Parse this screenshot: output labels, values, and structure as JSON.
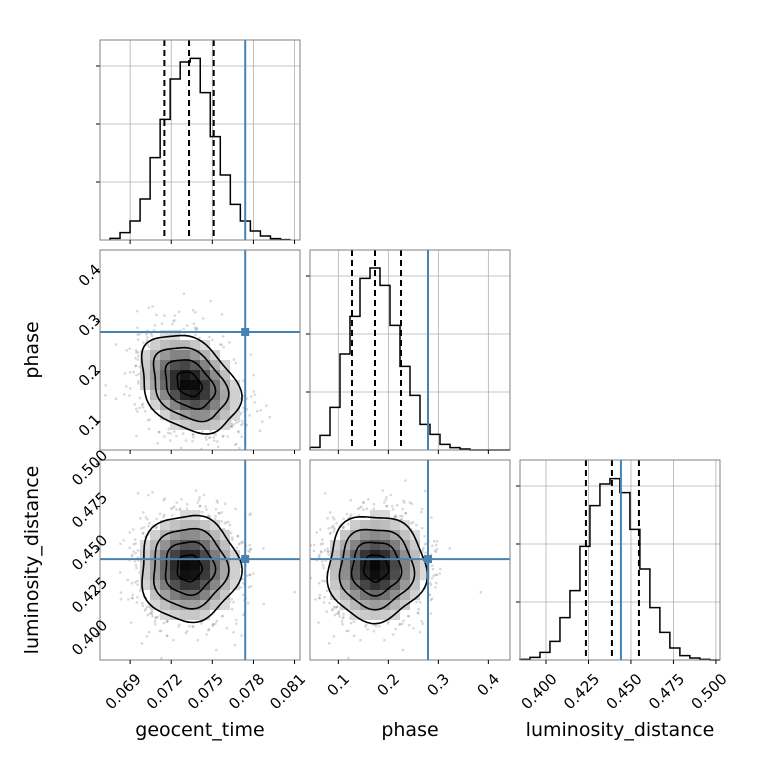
{
  "chart_data": {
    "type": "corner",
    "parameters": [
      {
        "name": "geocent_time",
        "label": "geocent_time",
        "range": [
          0.0668,
          0.0814
        ],
        "ticks": [
          0.069,
          0.072,
          0.075,
          0.078,
          0.081
        ],
        "tick_labels": [
          "0.069",
          "0.072",
          "0.075",
          "0.078",
          "0.081"
        ],
        "truth": 0.0774,
        "quantiles": [
          0.0715,
          0.0733,
          0.0751
        ],
        "mean": 0.0733,
        "sd": 0.0018,
        "hist": {
          "start": 0.06753,
          "bin_width": 0.000732,
          "counts": [
            5,
            22,
            57,
            123,
            247,
            362,
            483,
            534,
            545,
            442,
            310,
            195,
            107,
            57,
            27,
            12,
            4,
            1
          ]
        }
      },
      {
        "name": "phase",
        "label": "phase",
        "range": [
          0.0433,
          0.4433
        ],
        "ticks": [
          0.1,
          0.2,
          0.3,
          0.4
        ],
        "tick_labels": [
          "0.1",
          "0.2",
          "0.3",
          "0.4"
        ],
        "truth": 0.2793,
        "quantiles": [
          0.1273,
          0.1733,
          0.2253
        ],
        "mean": 0.175,
        "sd": 0.049,
        "hist": {
          "start": 0.0433,
          "bin_width": 0.02,
          "counts": [
            8,
            44,
            128,
            288,
            401,
            515,
            546,
            494,
            374,
            251,
            164,
            77,
            47,
            17,
            7,
            3,
            0,
            0,
            0,
            0
          ]
        }
      },
      {
        "name": "luminosity_distance",
        "label": "luminosity_distance",
        "range": [
          0.3847,
          0.5024
        ],
        "ticks": [
          0.4,
          0.425,
          0.45,
          0.475,
          0.5
        ],
        "tick_labels": [
          "0.400",
          "0.425",
          "0.450",
          "0.475",
          "0.500"
        ],
        "truth": 0.4441,
        "quantiles": [
          0.4235,
          0.4388,
          0.4547
        ],
        "mean": 0.4388,
        "sd": 0.0156,
        "hist": {
          "start": 0.3847,
          "bin_width": 0.00588,
          "counts": [
            2,
            8,
            23,
            56,
            127,
            208,
            341,
            463,
            528,
            544,
            502,
            392,
            273,
            157,
            83,
            36,
            13,
            6,
            2,
            0
          ]
        }
      }
    ],
    "hist_ylim": [
      0,
      600
    ],
    "correlations": {
      "geocent_time|phase": -0.3,
      "geocent_time|luminosity_distance": 0.0,
      "phase|luminosity_distance": 0.0
    },
    "contour_levels_sigma": [
      0.5,
      1,
      1.5,
      2
    ],
    "grid_1d": true,
    "grid_2d": false,
    "colors": {
      "truth": "#4682b4",
      "hist": "#000000",
      "quantile": "#000000",
      "points": "#7f7f7f",
      "frame": "#808080",
      "grid": "#b0b0b0"
    }
  }
}
